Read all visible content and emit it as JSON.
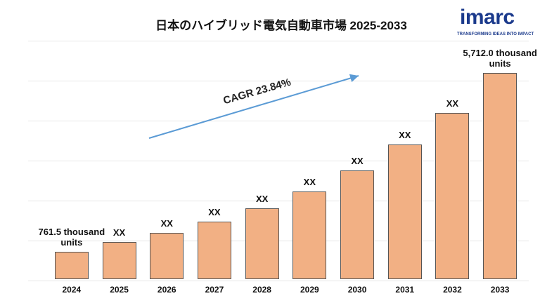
{
  "chart_data": {
    "type": "bar",
    "title": "日本のハイブリッド電気自動車市場 2025-2033",
    "categories": [
      "2024",
      "2025",
      "2026",
      "2027",
      "2028",
      "2029",
      "2030",
      "2031",
      "2032",
      "2033"
    ],
    "values": [
      761.5,
      1033,
      1279,
      1584,
      1962,
      2429,
      3008,
      3726,
      4614,
      5712.0
    ],
    "value_labels": [
      "761.5 thousand units",
      "XX",
      "XX",
      "XX",
      "XX",
      "XX",
      "XX",
      "XX",
      "XX",
      "5,712.0 thousand units"
    ],
    "color": "#f2b084",
    "annotation": "CAGR 23.84%",
    "grid": true
  },
  "logo": {
    "name": "imarc",
    "tagline": "TRANSFORMING IDEAS INTO IMPACT"
  }
}
